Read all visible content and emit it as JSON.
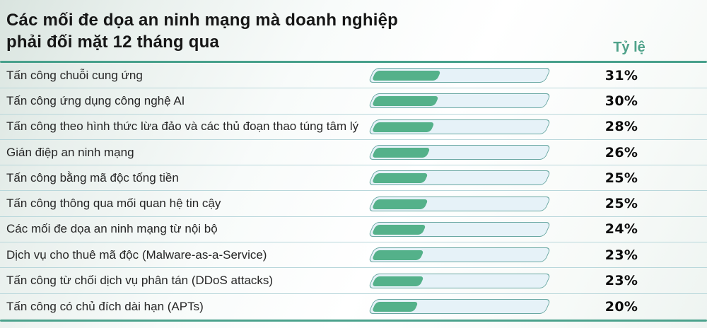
{
  "header": {
    "title_line1": "Các mối đe dọa an ninh mạng mà doanh nghiệp",
    "title_line2": "phải đối mặt 12 tháng qua",
    "rate_column_label": "Tỷ lệ"
  },
  "chart_data": {
    "type": "bar",
    "orientation": "horizontal",
    "title": "Các mối đe dọa an ninh mạng mà doanh nghiệp phải đối mặt 12 tháng qua",
    "value_column_header": "Tỷ lệ",
    "value_suffix": "%",
    "value_range": [
      0,
      100
    ],
    "grid": false,
    "legend": false,
    "categories": [
      "Tấn công chuỗi cung ứng",
      "Tấn công ứng dụng công nghệ AI",
      "Tấn công theo hình thức lừa đảo và các thủ đoạn thao túng tâm lý",
      "Gián điệp an ninh mạng",
      "Tấn công bằng mã độc tống tiền",
      "Tấn công thông qua mối quan hệ tin cậy",
      "Các mối đe dọa an ninh mạng từ nội bộ",
      "Dịch vụ cho thuê mã độc (Malware-as-a-Service)",
      "Tấn công từ chối dịch vụ phân tán (DDoS attacks)",
      "Tấn công có chủ đích dài hạn (APTs)"
    ],
    "values": [
      31,
      30,
      28,
      26,
      25,
      25,
      24,
      23,
      23,
      20
    ],
    "colors": {
      "accent_teal": "#47a08b",
      "bar_fill_green": "#54b18a",
      "bar_track_blue": "#e6f2f8",
      "bar_border_teal": "#6aa8a3",
      "row_separator": "#b9d7db",
      "title_text": "#161616",
      "value_text": "#0c0c0c",
      "rate_label_text": "#4fa28a"
    }
  }
}
